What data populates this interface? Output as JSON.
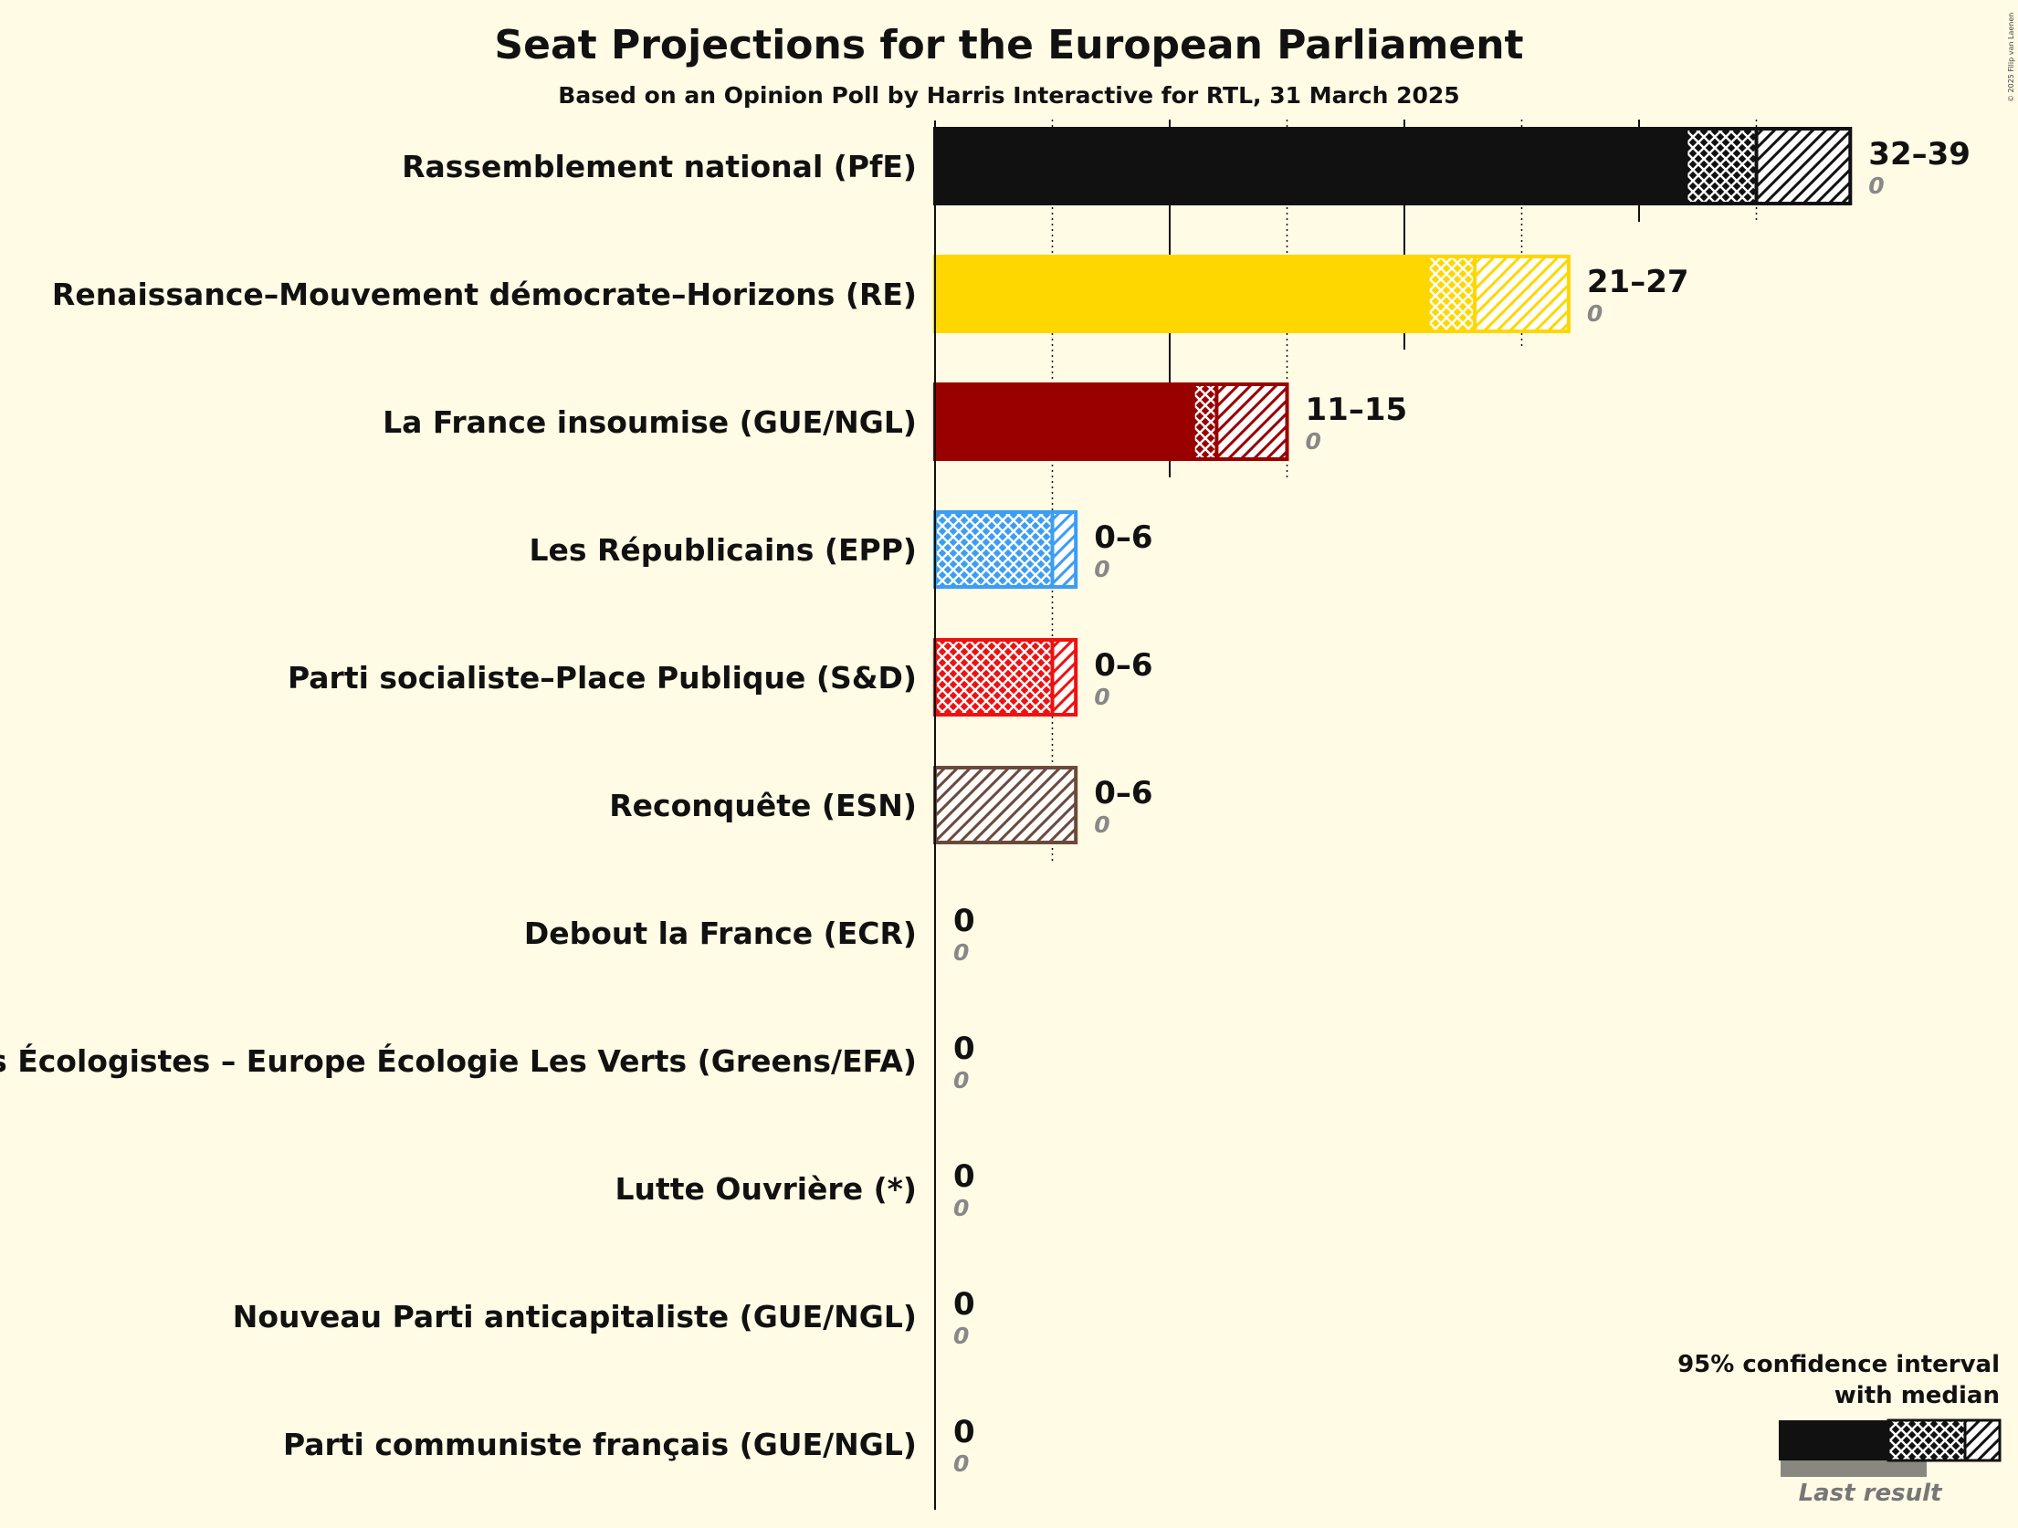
{
  "title": "Seat Projections for the European Parliament",
  "subtitle": "Based on an Opinion Poll by Harris Interactive for RTL, 31 March 2025",
  "copyright": "© 2025 Filip van Laenen",
  "legend": {
    "line1": "95% confidence interval",
    "line2": "with median",
    "last_result": "Last result"
  },
  "chart_data": {
    "type": "bar",
    "title": "Seat Projections for the European Parliament",
    "subtitle": "Based on an Opinion Poll by Harris Interactive for RTL, 31 March 2025",
    "xlabel": "",
    "ylabel": "",
    "xlim": [
      0,
      40
    ],
    "gridlines": [
      5,
      10,
      15,
      20,
      25,
      30,
      35
    ],
    "orientation": "horizontal",
    "parties": [
      {
        "name": "Rassemblement national (PfE)",
        "low": 32,
        "median": 35,
        "high": 39,
        "label": "32–39",
        "last": 0,
        "last_label": "0",
        "color": "#111111"
      },
      {
        "name": "Renaissance–Mouvement démocrate–Horizons (RE)",
        "low": 21,
        "median": 23,
        "high": 27,
        "label": "21–27",
        "last": 0,
        "last_label": "0",
        "color": "#FFD700"
      },
      {
        "name": "La France insoumise (GUE/NGL)",
        "low": 11,
        "median": 12,
        "high": 15,
        "label": "11–15",
        "last": 0,
        "last_label": "0",
        "color": "#990000"
      },
      {
        "name": "Les Républicains (EPP)",
        "low": 0,
        "median": 5,
        "high": 6,
        "label": "0–6",
        "last": 0,
        "last_label": "0",
        "color": "#3C9DF2"
      },
      {
        "name": "Parti socialiste–Place Publique (S&D)",
        "low": 0,
        "median": 5,
        "high": 6,
        "label": "0–6",
        "last": 0,
        "last_label": "0",
        "color": "#EE1111"
      },
      {
        "name": "Reconquête (ESN)",
        "low": 0,
        "median": 0,
        "high": 6,
        "label": "0–6",
        "last": 0,
        "last_label": "0",
        "color": "#6B4A3A"
      },
      {
        "name": "Debout la France (ECR)",
        "low": 0,
        "median": 0,
        "high": 0,
        "label": "0",
        "last": 0,
        "last_label": "0",
        "color": "#0055AA"
      },
      {
        "name": "Les Écologistes – Europe Écologie Les Verts (Greens/EFA)",
        "low": 0,
        "median": 0,
        "high": 0,
        "label": "0",
        "last": 0,
        "last_label": "0",
        "color": "#33AA33"
      },
      {
        "name": "Lutte Ouvrière (*)",
        "low": 0,
        "median": 0,
        "high": 0,
        "label": "0",
        "last": 0,
        "last_label": "0",
        "color": "#AA0000"
      },
      {
        "name": "Nouveau Parti anticapitaliste (GUE/NGL)",
        "low": 0,
        "median": 0,
        "high": 0,
        "label": "0",
        "last": 0,
        "last_label": "0",
        "color": "#CC2222"
      },
      {
        "name": "Parti communiste français (GUE/NGL)",
        "low": 0,
        "median": 0,
        "high": 0,
        "label": "0",
        "last": 0,
        "last_label": "0",
        "color": "#DD0000"
      }
    ]
  }
}
